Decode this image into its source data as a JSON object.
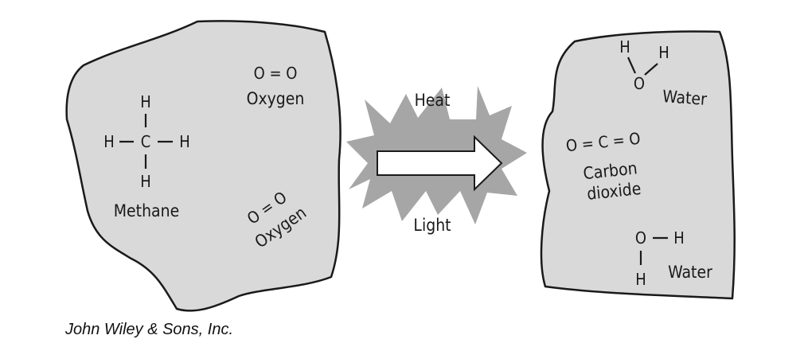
{
  "reactants": {
    "methane": {
      "atoms": {
        "h_top": "H",
        "h_left": "H",
        "c": "C",
        "h_right": "H",
        "h_bottom": "H"
      },
      "label": "Methane"
    },
    "oxygen_1": {
      "formula": "O = O",
      "label": "Oxygen"
    },
    "oxygen_2": {
      "formula": "O = O",
      "label": "Oxygen"
    }
  },
  "conditions": {
    "top": "Heat",
    "bottom": "Light"
  },
  "products": {
    "water_1": {
      "atoms": {
        "h1": "H",
        "h2": "H",
        "o": "O"
      },
      "label": "Water"
    },
    "carbon_dioxide": {
      "formula": "O = C = O",
      "label_line1": "Carbon",
      "label_line2": "dioxide"
    },
    "water_2": {
      "atoms": {
        "o": "O",
        "h_right": "H",
        "h_bottom": "H"
      },
      "label": "Water"
    }
  },
  "credit": "John Wiley & Sons, Inc.",
  "colors": {
    "blob_fill": "#d9d9d9",
    "burst_fill": "#a6a6a6",
    "arrow_fill": "#ffffff",
    "ink": "#1a1a1a"
  }
}
